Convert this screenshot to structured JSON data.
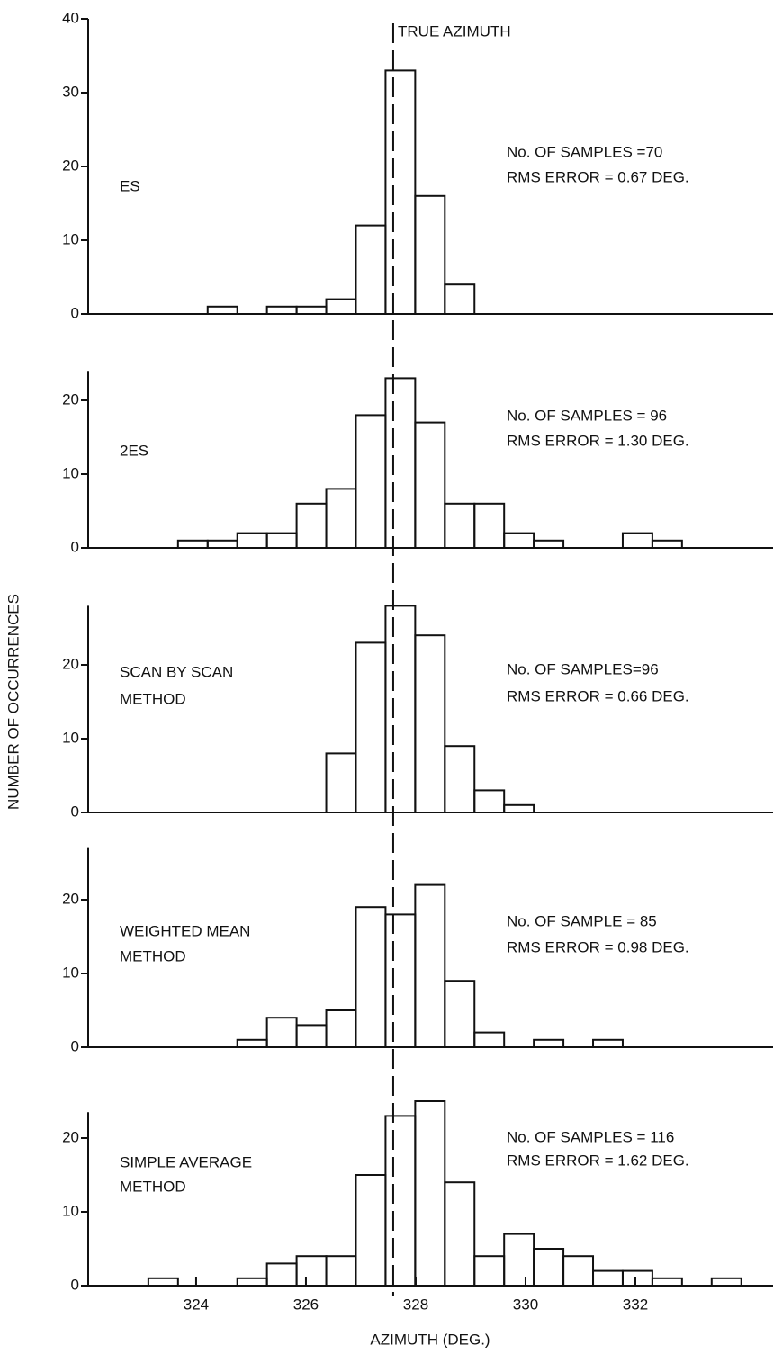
{
  "figure": {
    "ylabel": "NUMBER OF OCCURRENCES",
    "xlabel": "AZIMUTH (DEG.)",
    "reference_label": "TRUE AZIMUTH",
    "reference_x": 327.59
  },
  "chart_data": [
    {
      "type": "histogram",
      "label": [
        "ES"
      ],
      "notes": [
        "No. OF SAMPLES =70",
        "RMS ERROR = 0.67 DEG."
      ],
      "bins": [
        322.59,
        323.13,
        323.67,
        324.21,
        324.75,
        325.29,
        325.83,
        326.37,
        326.91,
        327.45,
        327.99,
        328.53,
        329.07,
        329.61,
        330.15,
        330.69,
        331.23,
        331.77,
        332.31,
        332.85,
        333.39,
        333.93,
        334.47
      ],
      "counts": [
        0,
        0,
        0,
        1,
        0,
        1,
        1,
        2,
        12,
        33,
        16,
        4,
        0,
        0,
        0,
        0,
        0,
        0,
        0,
        0,
        0,
        0
      ],
      "xlim": [
        322.05,
        334.5
      ],
      "ylim": [
        0,
        40
      ],
      "yticks": [
        0,
        10,
        20,
        30,
        40
      ]
    },
    {
      "type": "histogram",
      "label": [
        "2ES"
      ],
      "notes": [
        "No. OF SAMPLES = 96",
        "RMS ERROR = 1.30 DEG."
      ],
      "bins": [
        322.59,
        323.13,
        323.67,
        324.21,
        324.75,
        325.29,
        325.83,
        326.37,
        326.91,
        327.45,
        327.99,
        328.53,
        329.07,
        329.61,
        330.15,
        330.69,
        331.23,
        331.77,
        332.31,
        332.85,
        333.39,
        333.93,
        334.47
      ],
      "counts": [
        0,
        0,
        1,
        1,
        2,
        2,
        6,
        8,
        18,
        23,
        17,
        6,
        6,
        2,
        1,
        0,
        0,
        2,
        1,
        0,
        0,
        0
      ],
      "xlim": [
        322.05,
        334.5
      ],
      "ylim": [
        0,
        24
      ],
      "yticks": [
        0,
        10,
        20
      ]
    },
    {
      "type": "histogram",
      "label": [
        "SCAN BY SCAN",
        "METHOD"
      ],
      "notes": [
        "No. OF SAMPLES=96",
        "RMS ERROR = 0.66 DEG."
      ],
      "bins": [
        322.59,
        323.13,
        323.67,
        324.21,
        324.75,
        325.29,
        325.83,
        326.37,
        326.91,
        327.45,
        327.99,
        328.53,
        329.07,
        329.61,
        330.15,
        330.69,
        331.23,
        331.77,
        332.31,
        332.85,
        333.39,
        333.93,
        334.47
      ],
      "counts": [
        0,
        0,
        0,
        0,
        0,
        0,
        0,
        8,
        23,
        28,
        24,
        9,
        3,
        1,
        0,
        0,
        0,
        0,
        0,
        0,
        0,
        0
      ],
      "xlim": [
        322.05,
        334.5
      ],
      "ylim": [
        0,
        28
      ],
      "yticks": [
        0,
        10,
        20
      ]
    },
    {
      "type": "histogram",
      "label": [
        "WEIGHTED MEAN",
        "METHOD"
      ],
      "notes": [
        "No. OF SAMPLE = 85",
        "RMS ERROR = 0.98 DEG."
      ],
      "bins": [
        322.59,
        323.13,
        323.67,
        324.21,
        324.75,
        325.29,
        325.83,
        326.37,
        326.91,
        327.45,
        327.99,
        328.53,
        329.07,
        329.61,
        330.15,
        330.69,
        331.23,
        331.77,
        332.31,
        332.85,
        333.39,
        333.93,
        334.47
      ],
      "counts": [
        0,
        0,
        0,
        0,
        1,
        4,
        3,
        5,
        19,
        18,
        22,
        9,
        2,
        0,
        1,
        0,
        1,
        0,
        0,
        0,
        0,
        0
      ],
      "xlim": [
        322.05,
        334.5
      ],
      "ylim": [
        0,
        27
      ],
      "yticks": [
        0,
        10,
        20
      ]
    },
    {
      "type": "histogram",
      "label": [
        "SIMPLE AVERAGE",
        "METHOD"
      ],
      "notes": [
        "No. OF SAMPLES = 116",
        "RMS ERROR = 1.62 DEG."
      ],
      "bins": [
        322.59,
        323.13,
        323.67,
        324.21,
        324.75,
        325.29,
        325.83,
        326.37,
        326.91,
        327.45,
        327.99,
        328.53,
        329.07,
        329.61,
        330.15,
        330.69,
        331.23,
        331.77,
        332.31,
        332.85,
        333.39,
        333.93,
        334.47
      ],
      "counts": [
        0,
        1,
        0,
        0,
        1,
        3,
        4,
        4,
        15,
        23,
        25,
        14,
        4,
        7,
        5,
        4,
        2,
        2,
        1,
        0,
        1,
        0
      ],
      "xlim": [
        322.05,
        334.5
      ],
      "ylim": [
        0,
        23.5
      ],
      "yticks": [
        0,
        10,
        20
      ],
      "xticks": [
        324,
        326,
        328,
        330,
        332
      ]
    }
  ]
}
